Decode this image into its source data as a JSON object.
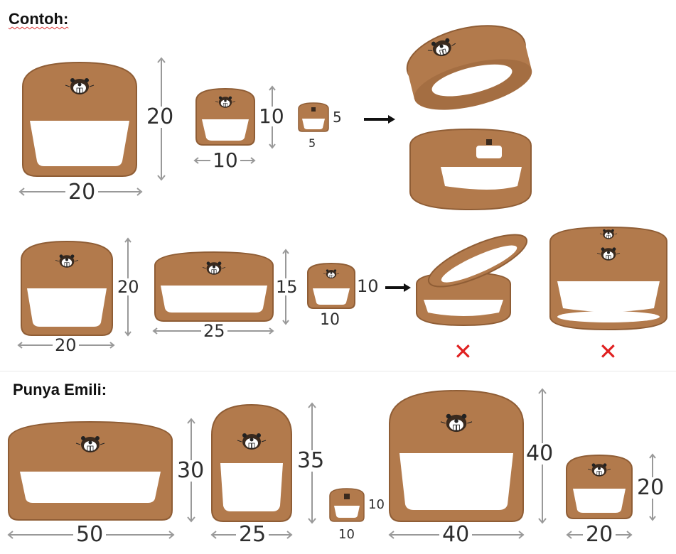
{
  "headings": {
    "example": "Contoh:",
    "emili": "Punya Emili:"
  },
  "colors": {
    "ring_fill": "#b27a4c",
    "ring_edge": "#8f5d35",
    "inner_white": "#ffffff",
    "cross_red": "#e02020"
  },
  "example_row1": {
    "items": [
      {
        "width": "20",
        "height": "20"
      },
      {
        "width": "10",
        "height": "10"
      },
      {
        "width": "5",
        "height": "5"
      }
    ],
    "result": "stacked-tilted-rings"
  },
  "example_row2": {
    "items": [
      {
        "width": "20",
        "height": "20"
      },
      {
        "width": "25",
        "height": "15"
      },
      {
        "width": "10",
        "height": "10"
      }
    ],
    "results": [
      {
        "mark": "✕"
      },
      {
        "mark": "✕"
      }
    ]
  },
  "emili_items": [
    {
      "width": "50",
      "height": "30"
    },
    {
      "width": "25",
      "height": "35"
    },
    {
      "width": "10",
      "height": "10"
    },
    {
      "width": "40",
      "height": "40"
    },
    {
      "width": "20",
      "height": "20"
    }
  ]
}
